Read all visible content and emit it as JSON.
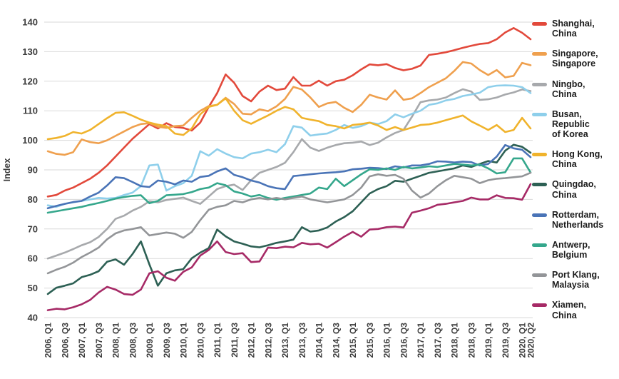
{
  "chart_data": {
    "type": "line",
    "title": "",
    "xlabel": "",
    "ylabel": "Index",
    "ylim": [
      40,
      140
    ],
    "ytick_step": 10,
    "yticks": [
      40,
      50,
      60,
      70,
      80,
      90,
      100,
      110,
      120,
      130,
      140
    ],
    "grid": "horizontal",
    "legend_position": "right",
    "x_unit": "quarter",
    "x_range": "2006 Q1 to 2020 Q2, quarterly (58 points)",
    "x_tick_labels": [
      "2006, Q1",
      "2006, Q3",
      "2007, Q1",
      "2007, Q3",
      "2008, Q1",
      "2008, Q3",
      "2009, Q1",
      "2009, Q3",
      "2010, Q1",
      "2010, Q3",
      "2011, Q1",
      "2011, Q3",
      "2012, Q1",
      "2012, Q3",
      "2013, Q1",
      "2013, Q3",
      "2014, Q1",
      "2014, Q3",
      "2015, Q1",
      "2015, Q3",
      "2016, Q1",
      "2016, Q3",
      "2017, Q1",
      "2017, Q3",
      "2018, Q1",
      "2018, Q3",
      "2019, Q1",
      "2019, Q3",
      "2020, Q1",
      "2020, Q2"
    ],
    "x_tick_quarter_indices": [
      0,
      2,
      4,
      6,
      8,
      10,
      12,
      14,
      16,
      18,
      20,
      22,
      24,
      26,
      28,
      30,
      32,
      34,
      36,
      38,
      40,
      42,
      44,
      46,
      48,
      50,
      52,
      54,
      56,
      57
    ],
    "series": [
      {
        "name": "Shanghai, China",
        "legend_lines": [
          "Shanghai,",
          "China"
        ],
        "color": "#e2493b",
        "values": [
          81,
          81.5,
          83,
          84,
          85.5,
          87,
          89,
          91.5,
          94.5,
          97.5,
          100.5,
          103,
          105.5,
          104,
          105.8,
          104.5,
          104.2,
          103.3,
          106,
          111.3,
          116,
          122.3,
          119.5,
          115,
          113.2,
          116.5,
          118.5,
          117,
          117.5,
          121.4,
          118.5,
          118.5,
          120.2,
          118.5,
          120,
          120.5,
          122,
          124,
          125.7,
          125.4,
          125.8,
          124.5,
          123.7,
          124.2,
          125.3,
          128.9,
          129.3,
          129.8,
          130.5,
          131.3,
          132,
          132.6,
          132.9,
          134.2,
          136.5,
          138,
          136.4,
          134.2
        ]
      },
      {
        "name": "Singapore, Singapore",
        "legend_lines": [
          "Singapore,",
          "Singapore"
        ],
        "color": "#efa04e",
        "values": [
          96.3,
          95.4,
          95.1,
          96,
          100.3,
          99.4,
          99,
          100,
          101.5,
          103,
          104.5,
          105.5,
          105.8,
          104.6,
          104.2,
          104.8,
          105,
          107.6,
          110,
          111.6,
          112,
          114.4,
          112.3,
          109,
          108.8,
          110.5,
          109.9,
          111.5,
          114,
          118.1,
          117.2,
          114.5,
          111.3,
          112.5,
          113,
          111,
          109.6,
          112,
          115.4,
          114.5,
          113.8,
          116.9,
          113.7,
          114.2,
          116,
          118,
          119.5,
          121,
          123.5,
          126.5,
          126,
          123.8,
          122.1,
          123.8,
          121.3,
          121.8,
          126.2,
          125.4
        ]
      },
      {
        "name": "Ningbo, China",
        "legend_lines": [
          "Ningbo,",
          "China"
        ],
        "color": "#a7a9ac",
        "values": [
          60,
          61,
          62,
          63.2,
          64.5,
          65.5,
          67.3,
          70,
          73.4,
          74.5,
          76.2,
          77.5,
          79.4,
          79,
          79.8,
          80.2,
          80.6,
          79.5,
          78.5,
          81,
          83.5,
          84.5,
          85,
          83.2,
          86.5,
          89,
          90,
          91,
          92.4,
          96,
          100.4,
          97.5,
          96.4,
          97.5,
          98.4,
          99,
          99.2,
          99.6,
          98.4,
          99.2,
          101,
          102.5,
          103.5,
          108,
          112.9,
          113.5,
          113.8,
          114.5,
          116,
          117.3,
          116.5,
          113.7,
          113.9,
          114.5,
          115.5,
          116.2,
          117.2,
          116.7
        ]
      },
      {
        "name": "Busan, Republic of Korea",
        "legend_lines": [
          "Busan,",
          "Republic",
          "of Korea"
        ],
        "color": "#8ecfeb",
        "values": [
          78,
          77.5,
          78.5,
          79,
          79.5,
          80,
          80.5,
          80.3,
          80.5,
          81.5,
          82.3,
          84.5,
          91.5,
          91.8,
          83,
          84.5,
          85.5,
          88,
          96.3,
          94.8,
          97,
          95.5,
          94.3,
          93.9,
          95.5,
          96,
          96.8,
          96,
          98.7,
          104.8,
          104.3,
          101.6,
          102,
          102.3,
          103.5,
          105.2,
          104.2,
          104.8,
          106,
          105.5,
          106.5,
          108.8,
          107.8,
          109,
          110,
          112,
          112.5,
          113.5,
          114,
          115,
          115.5,
          116.1,
          118,
          118.5,
          118.6,
          118.5,
          118,
          116
        ]
      },
      {
        "name": "Hong Kong, China",
        "legend_lines": [
          "Hong Kong,",
          "China"
        ],
        "color": "#f0b32c",
        "values": [
          100.4,
          100.8,
          101.5,
          102.8,
          102.3,
          103.5,
          105.5,
          107.5,
          109.3,
          109.5,
          108.3,
          107,
          106,
          105.3,
          104.8,
          102.3,
          101.8,
          104,
          108.8,
          111.3,
          112,
          114.2,
          110,
          106.8,
          105.6,
          107,
          108.4,
          110,
          111.3,
          110.5,
          107.6,
          107,
          106.5,
          105.2,
          104.8,
          104,
          105.2,
          105.5,
          106,
          105,
          103.5,
          104.5,
          103.5,
          104.3,
          105.2,
          105.4,
          106,
          106.8,
          107.6,
          108.4,
          106.4,
          105,
          103.5,
          105.2,
          102.8,
          103.5,
          107.6,
          104
        ]
      },
      {
        "name": "Quingdao, China",
        "legend_lines": [
          "Quingdao,",
          "China"
        ],
        "color": "#2d6054",
        "values": [
          48,
          50.1,
          50.8,
          51.6,
          53.7,
          54.5,
          55.7,
          58.9,
          59.7,
          57.9,
          61.5,
          65.8,
          58,
          50.8,
          55,
          56,
          56.4,
          60.1,
          62,
          63.5,
          69.8,
          67.5,
          65.8,
          65,
          64.1,
          63.8,
          64.5,
          65.3,
          65.8,
          66.4,
          70.6,
          69.1,
          69.5,
          70.5,
          72.5,
          74,
          76,
          79,
          82,
          83.5,
          84.5,
          86.3,
          86,
          87,
          88,
          89,
          89.5,
          90,
          90.5,
          91.5,
          91,
          92,
          93,
          92.5,
          96.5,
          98.5,
          97.8,
          95.8
        ]
      },
      {
        "name": "Rotterdam, Netherlands",
        "legend_lines": [
          "Rotterdam,",
          "Netherlands"
        ],
        "color": "#4a74b7",
        "values": [
          77,
          77.8,
          78.5,
          79.1,
          79.5,
          81,
          82.3,
          84.7,
          87.5,
          87.2,
          85.9,
          84.5,
          84.2,
          86.4,
          86,
          85.1,
          86.4,
          86,
          87.6,
          88,
          89.5,
          90.5,
          88.3,
          87.5,
          86.4,
          85.7,
          84.5,
          83.8,
          83.5,
          87.9,
          88.2,
          88.5,
          88.8,
          89,
          89.2,
          89.5,
          90.2,
          90.4,
          90.7,
          90.6,
          90.3,
          91.2,
          90.8,
          91.5,
          91.5,
          92,
          92.9,
          92.8,
          92.5,
          92.8,
          92.6,
          91.5,
          92,
          94.5,
          98.4,
          97.3,
          96.8,
          94.3
        ]
      },
      {
        "name": "Antwerp, Belgium",
        "legend_lines": [
          "Antwerp,",
          "Belgium"
        ],
        "color": "#35a78c",
        "values": [
          75.5,
          76,
          76.5,
          77,
          77.5,
          78.2,
          78.8,
          79.5,
          80.3,
          80.8,
          81.2,
          81.4,
          78.7,
          79.5,
          81.4,
          81.6,
          81.8,
          82.5,
          83.5,
          84,
          85.5,
          84.8,
          82.7,
          82,
          81,
          81.5,
          80.5,
          79.9,
          80.5,
          81,
          81.5,
          82,
          84,
          83.5,
          87,
          84.5,
          86.5,
          88.5,
          90.2,
          90,
          90.5,
          90,
          91,
          90.5,
          90.8,
          91.2,
          91,
          91.5,
          92,
          91.8,
          91.5,
          91.8,
          90.5,
          88.8,
          89.2,
          93.9,
          93.9,
          89.1
        ]
      },
      {
        "name": "Port Klang, Malaysia",
        "legend_lines": [
          "Port Klang,",
          "Malaysia"
        ],
        "color": "#939598",
        "values": [
          55,
          56.2,
          57.2,
          58.6,
          60.5,
          62,
          63.7,
          66.5,
          68.5,
          69.5,
          70,
          70.6,
          67.8,
          68.3,
          68.8,
          68.4,
          67,
          69,
          73,
          76.5,
          77.5,
          78,
          79.5,
          79,
          80,
          80.5,
          80,
          80.5,
          80,
          80.5,
          81,
          80,
          79.5,
          79,
          79.5,
          80,
          81.5,
          84,
          87.8,
          88.5,
          88,
          88.3,
          87,
          83,
          80.6,
          82,
          84.5,
          86.5,
          88,
          87.5,
          87,
          85.5,
          86.5,
          87,
          87.2,
          87.5,
          87.8,
          89
        ]
      },
      {
        "name": "Xiamen, China",
        "legend_lines": [
          "Xiamen,",
          "China"
        ],
        "color": "#a62a66",
        "values": [
          42.5,
          43,
          42.8,
          43.5,
          44.5,
          46,
          48.5,
          50.4,
          49.5,
          48,
          47.7,
          49.5,
          55,
          55.7,
          53.5,
          52.5,
          55.5,
          57,
          61,
          62.9,
          65.8,
          62.2,
          61.5,
          61.8,
          58.8,
          59,
          63.7,
          63.5,
          64,
          63.8,
          65.3,
          64.8,
          65,
          63.7,
          65.5,
          67.4,
          69,
          67.4,
          69.8,
          70,
          70.6,
          70.8,
          70.5,
          75.5,
          76.2,
          77,
          78.2,
          78.5,
          79,
          79.5,
          80.6,
          80,
          80,
          81.4,
          80.5,
          80.4,
          79.9,
          85.2
        ]
      }
    ],
    "style": {
      "grid_color": "#d9d9d9",
      "axis_text_color": "#3d3d3d",
      "legend_text_color": "#1c1c1c",
      "background": "#ffffff",
      "line_width": 2.6
    }
  }
}
